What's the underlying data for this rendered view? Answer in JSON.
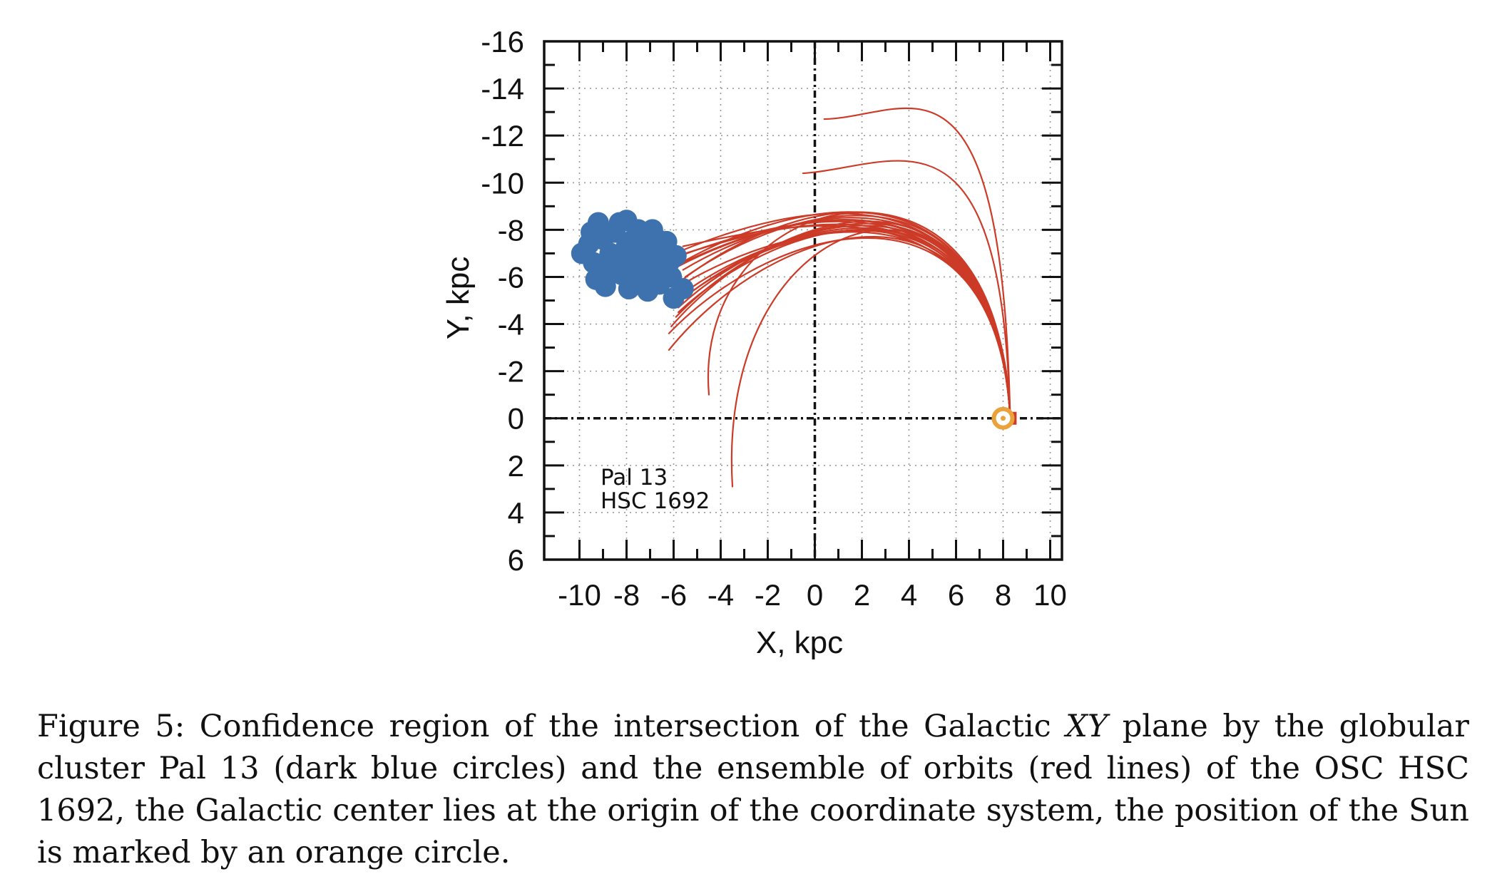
{
  "figure": {
    "caption_label": "Figure 5:",
    "caption_pre": " Confidence region of the intersection of the Galactic ",
    "caption_xy": "XY",
    "caption_post": " plane by the globular cluster Pal 13 (dark blue circles) and the ensemble of orbits (red lines) of the OSC HSC 1692, the Galactic center lies at the origin of the coordinate system, the position of the Sun is marked by an orange circle."
  },
  "chart_data": {
    "type": "scatter",
    "xlabel": "X, kpc",
    "ylabel": "Y, kpc",
    "xlim": [
      -11.5,
      10.5
    ],
    "ylim": [
      -16,
      6
    ],
    "y_inverted": true,
    "grid": true,
    "x_ticks": [
      "-10",
      "-8",
      "-6",
      "-4",
      "-2",
      "0",
      "2",
      "4",
      "6",
      "8",
      "10"
    ],
    "y_ticks": [
      "-16",
      "-14",
      "-12",
      "-10",
      "-8",
      "-6",
      "-4",
      "-2",
      "0",
      "2",
      "4",
      "6"
    ],
    "annotations": [
      "Pal 13",
      "HSC 1692"
    ],
    "colors": {
      "cluster": "#3d72ae",
      "orbits": "#cc3b27",
      "sun": "#eaa23a",
      "grid": "#9a9a9a"
    },
    "series": [
      {
        "name": "Pal 13",
        "kind": "points",
        "points": [
          [
            -9.9,
            -7.0
          ],
          [
            -9.6,
            -7.4
          ],
          [
            -9.4,
            -6.6
          ],
          [
            -9.2,
            -8.3
          ],
          [
            -9.0,
            -7.6
          ],
          [
            -9.0,
            -6.3
          ],
          [
            -8.9,
            -5.6
          ],
          [
            -8.7,
            -7.0
          ],
          [
            -8.5,
            -7.9
          ],
          [
            -8.3,
            -8.3
          ],
          [
            -8.2,
            -6.1
          ],
          [
            -8.2,
            -6.7
          ],
          [
            -8.0,
            -7.3
          ],
          [
            -7.9,
            -5.5
          ],
          [
            -7.8,
            -6.5
          ],
          [
            -7.7,
            -7.6
          ],
          [
            -7.6,
            -5.9
          ],
          [
            -7.4,
            -6.9
          ],
          [
            -7.3,
            -7.8
          ],
          [
            -7.2,
            -6.1
          ],
          [
            -7.1,
            -5.4
          ],
          [
            -7.0,
            -7.2
          ],
          [
            -6.8,
            -6.4
          ],
          [
            -6.7,
            -7.6
          ],
          [
            -6.6,
            -5.7
          ],
          [
            -6.4,
            -7.0
          ],
          [
            -6.3,
            -7.5
          ],
          [
            -6.2,
            -6.6
          ],
          [
            -6.1,
            -6.0
          ],
          [
            -6.0,
            -5.1
          ],
          [
            -5.9,
            -6.9
          ],
          [
            -5.6,
            -5.5
          ],
          [
            -9.3,
            -5.9
          ],
          [
            -8.6,
            -6.2
          ],
          [
            -8.0,
            -8.4
          ],
          [
            -7.5,
            -8.0
          ],
          [
            -6.9,
            -8.0
          ],
          [
            -9.5,
            -7.9
          ]
        ]
      },
      {
        "name": "HSC 1692",
        "kind": "orbits",
        "sun_position": [
          8.0,
          0.0
        ],
        "orbit_start": [
          8.3,
          0.0
        ],
        "orbit_ends": [
          [
            -5.6,
            -7.3
          ],
          [
            -5.5,
            -7.0
          ],
          [
            -5.7,
            -6.9
          ],
          [
            -5.6,
            -6.6
          ],
          [
            -5.6,
            -6.3
          ],
          [
            -5.5,
            -6.0
          ],
          [
            -5.6,
            -5.7
          ],
          [
            -5.6,
            -5.3
          ],
          [
            -5.7,
            -5.0
          ],
          [
            -5.8,
            -4.7
          ],
          [
            -5.9,
            -4.3
          ],
          [
            -6.1,
            -3.9
          ],
          [
            -6.2,
            -3.6
          ],
          [
            -6.2,
            -2.9
          ],
          [
            -5.9,
            -6.4
          ],
          [
            -5.7,
            -7.1
          ],
          [
            -5.5,
            -6.7
          ],
          [
            -5.6,
            -5.9
          ],
          [
            -5.6,
            -5.1
          ],
          [
            -5.8,
            -4.5
          ]
        ],
        "outlier_orbits": [
          {
            "apex_y": -12.7,
            "end": [
              0.4,
              -12.7
            ]
          },
          {
            "apex_y": -10.6,
            "end": [
              -0.5,
              -10.4
            ]
          },
          {
            "apex_y": -9.8,
            "end": [
              -4.5,
              -1.0
            ]
          },
          {
            "apex_y": -9.4,
            "end": [
              -3.5,
              2.9
            ]
          }
        ]
      }
    ]
  }
}
